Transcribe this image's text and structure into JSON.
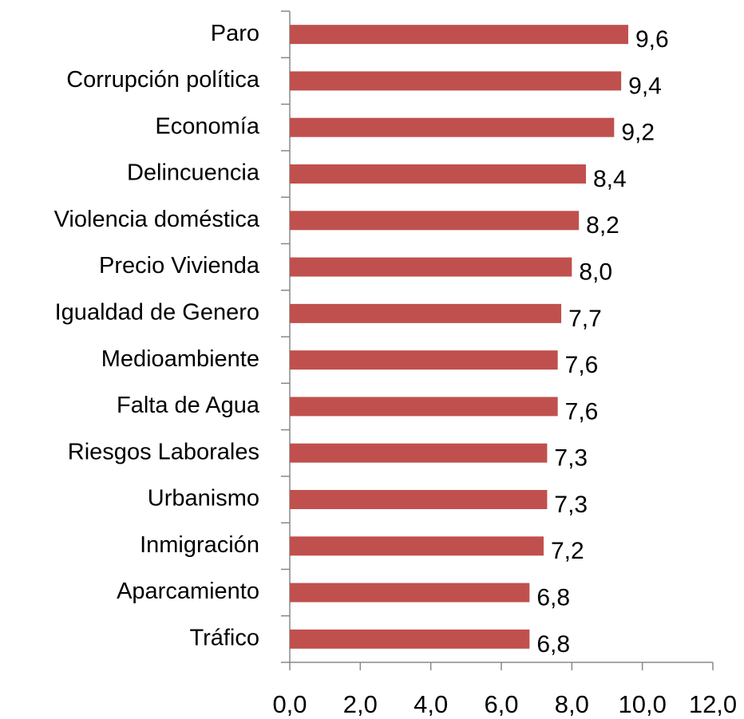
{
  "chart_data": {
    "type": "bar",
    "orientation": "horizontal",
    "categories": [
      "Paro",
      "Corrupción política",
      "Economía",
      "Delincuencia",
      "Violencia doméstica",
      "Precio Vivienda",
      "Igualdad de Genero",
      "Medioambiente",
      "Falta de Agua",
      "Riesgos Laborales",
      "Urbanismo",
      "Inmigración",
      "Aparcamiento",
      "Tráfico"
    ],
    "values": [
      9.6,
      9.4,
      9.2,
      8.4,
      8.2,
      8.0,
      7.7,
      7.6,
      7.6,
      7.3,
      7.3,
      7.2,
      6.8,
      6.8
    ],
    "value_labels": [
      "9,6",
      "9,4",
      "9,2",
      "8,4",
      "8,2",
      "8,0",
      "7,7",
      "7,6",
      "7,6",
      "7,3",
      "7,3",
      "7,2",
      "6,8",
      "6,8"
    ],
    "color": "#c0504d",
    "xlim": [
      0,
      12
    ],
    "xticks": [
      {
        "value": 0,
        "label": "0,0"
      },
      {
        "value": 2,
        "label": "2,0"
      },
      {
        "value": 4,
        "label": "4,0"
      },
      {
        "value": 6,
        "label": "6,0"
      },
      {
        "value": 8,
        "label": "8,0"
      },
      {
        "value": 10,
        "label": "10,0"
      },
      {
        "value": 12,
        "label": "12,0"
      }
    ]
  }
}
